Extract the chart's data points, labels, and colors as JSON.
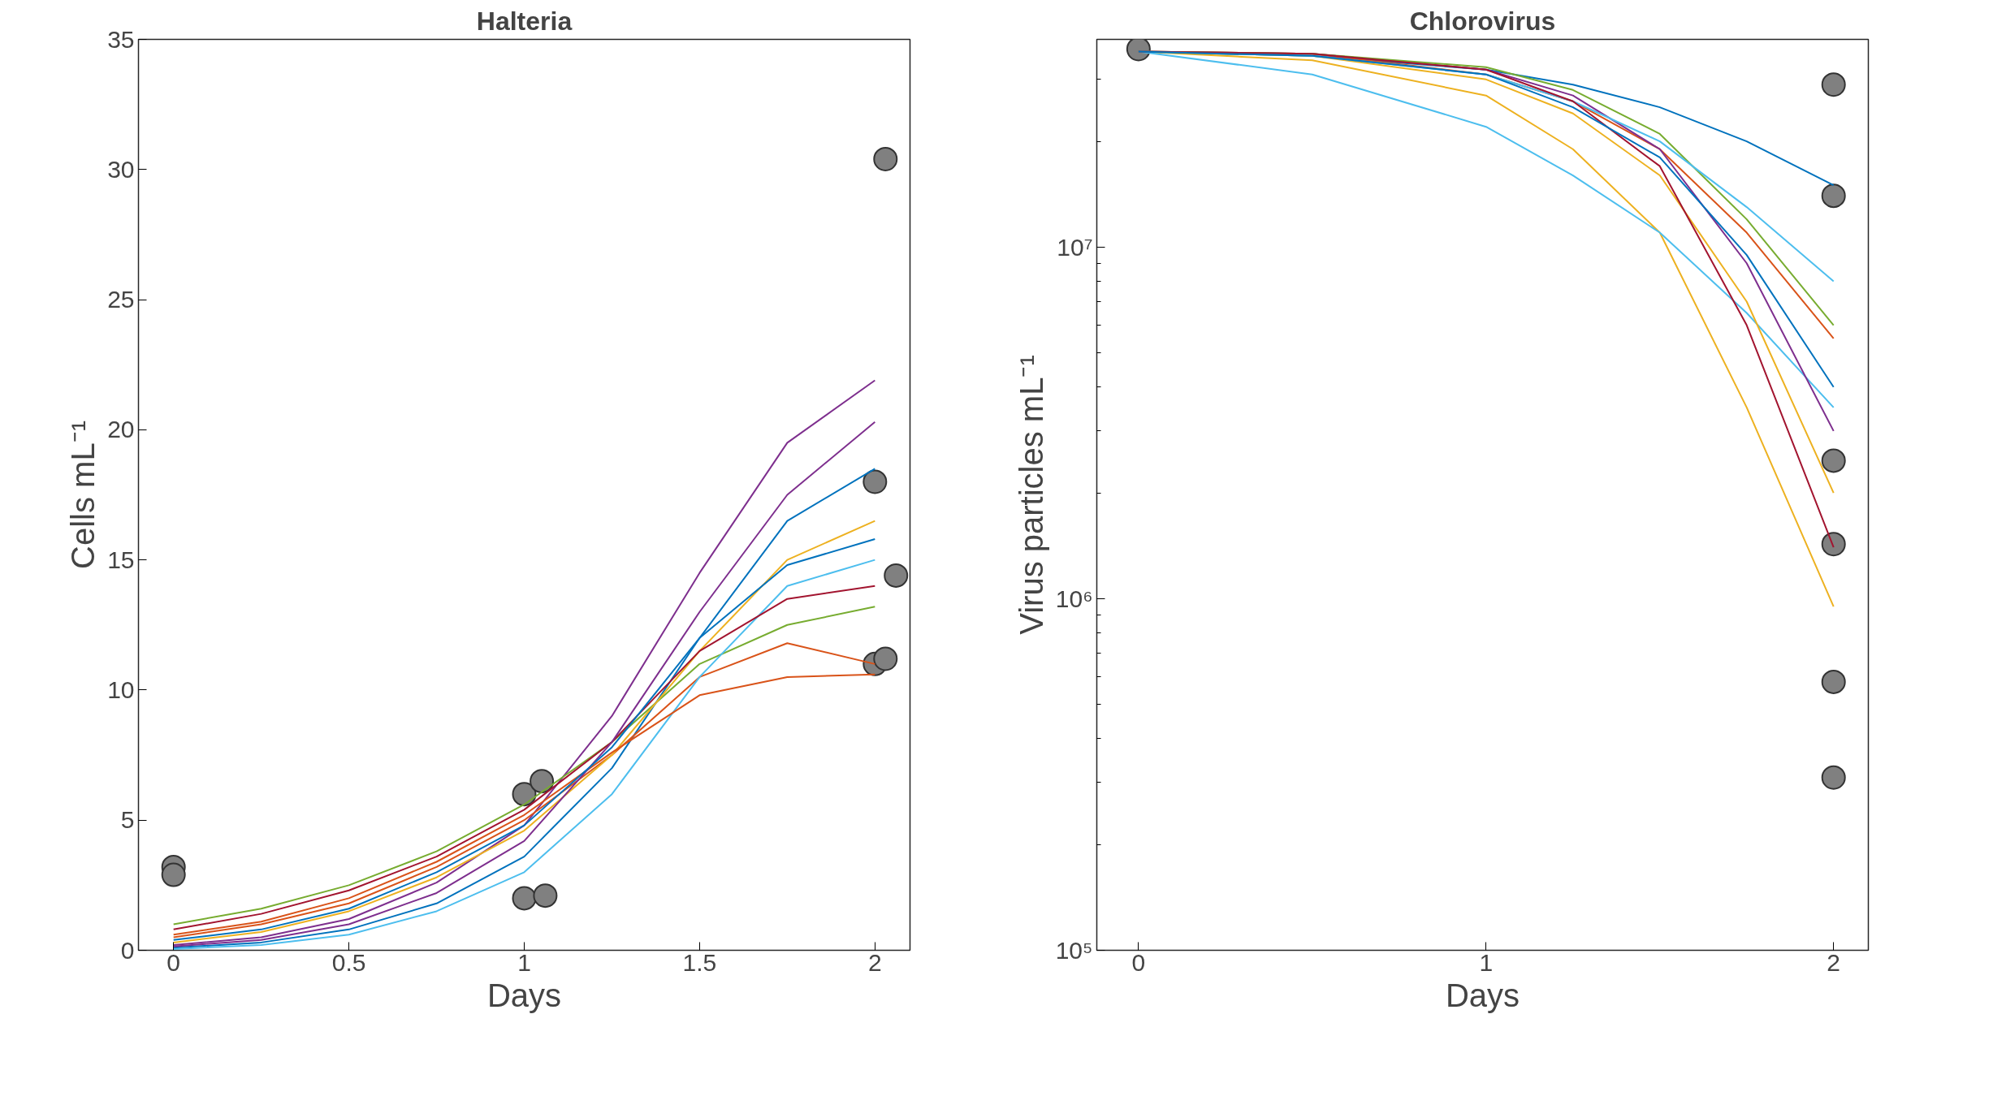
{
  "chart_data": [
    {
      "type": "line",
      "title": "Halteria",
      "xlabel": "Days",
      "ylabel": "Cells mL⁻¹",
      "xlim": [
        -0.1,
        2.1
      ],
      "xticks": [
        0,
        0.5,
        1,
        1.5,
        2
      ],
      "ylim": [
        0,
        35
      ],
      "yticks": [
        0,
        5,
        10,
        15,
        20,
        25,
        30,
        35
      ],
      "grid": false,
      "line_style": "solid",
      "marker": "none",
      "series": [
        {
          "color": "#7e2f8e",
          "x": [
            0,
            0.25,
            0.5,
            0.75,
            1,
            1.25,
            1.5,
            1.75,
            2
          ],
          "values": [
            0.2,
            0.5,
            1.2,
            2.6,
            4.8,
            9,
            14.5,
            19.5,
            21.9
          ]
        },
        {
          "color": "#77ac30",
          "x": [
            0,
            0.25,
            0.5,
            0.75,
            1,
            1.25,
            1.5,
            1.75,
            2
          ],
          "values": [
            1.0,
            1.6,
            2.5,
            3.8,
            5.6,
            8,
            11,
            12.5,
            13.2
          ]
        },
        {
          "color": "#0072bd",
          "x": [
            0,
            0.25,
            0.5,
            0.75,
            1,
            1.25,
            1.5,
            1.75,
            2
          ],
          "values": [
            0.1,
            0.3,
            0.8,
            1.8,
            3.6,
            7,
            12,
            16.5,
            18.5
          ]
        },
        {
          "color": "#d95319",
          "x": [
            0,
            0.25,
            0.5,
            0.75,
            1,
            1.25,
            1.5,
            1.75,
            2
          ],
          "values": [
            0.5,
            1.0,
            1.8,
            3.2,
            5.0,
            7.5,
            10.5,
            11.8,
            11
          ]
        },
        {
          "color": "#edb120",
          "x": [
            0,
            0.25,
            0.5,
            0.75,
            1,
            1.25,
            1.5,
            1.75,
            2
          ],
          "values": [
            0.3,
            0.7,
            1.5,
            2.8,
            4.6,
            7.5,
            11.5,
            15,
            16.5
          ]
        },
        {
          "color": "#4dbeee",
          "x": [
            0,
            0.25,
            0.5,
            0.75,
            1,
            1.25,
            1.5,
            1.75,
            2
          ],
          "values": [
            0.05,
            0.2,
            0.6,
            1.5,
            3.0,
            6,
            10.5,
            14,
            15
          ]
        },
        {
          "color": "#a2142f",
          "x": [
            0,
            0.25,
            0.5,
            0.75,
            1,
            1.25,
            1.5,
            1.75,
            2
          ],
          "values": [
            0.8,
            1.4,
            2.3,
            3.6,
            5.4,
            8,
            11.5,
            13.5,
            14
          ]
        },
        {
          "color": "#d95319",
          "x": [
            0,
            0.25,
            0.5,
            0.75,
            1,
            1.25,
            1.5,
            1.75,
            2
          ],
          "values": [
            0.6,
            1.1,
            2,
            3.4,
            5.2,
            7.6,
            9.8,
            10.5,
            10.6
          ]
        },
        {
          "color": "#7e2f8e",
          "x": [
            0,
            0.25,
            0.5,
            0.75,
            1,
            1.25,
            1.5,
            1.75,
            2
          ],
          "values": [
            0.15,
            0.4,
            1.0,
            2.2,
            4.2,
            8,
            13,
            17.5,
            20.3
          ]
        },
        {
          "color": "#0072bd",
          "x": [
            0,
            0.25,
            0.5,
            0.75,
            1,
            1.25,
            1.5,
            1.75,
            2
          ],
          "values": [
            0.4,
            0.8,
            1.6,
            3,
            4.8,
            7.8,
            12,
            14.8,
            15.8
          ]
        },
        {
          "type": "scatter",
          "marker": "circle",
          "color": "#808080",
          "x": [
            0,
            0,
            1,
            1.05,
            1,
            1.06,
            2,
            2.03,
            2.06,
            2,
            2.03
          ],
          "values": [
            3.2,
            2.9,
            6.0,
            6.5,
            2.0,
            2.1,
            18,
            30.4,
            14.4,
            11,
            11.2
          ]
        }
      ]
    },
    {
      "type": "line",
      "title": "Chlorovirus",
      "xlabel": "Days",
      "ylabel": "Virus particles mL⁻¹",
      "log": "y",
      "xlim": [
        -0.12,
        2.1
      ],
      "xticks": [
        0,
        1,
        2
      ],
      "ylim": [
        100000,
        39000000
      ],
      "yticks": [
        {
          "value": 100000,
          "label": "10⁵"
        },
        {
          "value": 1000000,
          "label": "10⁶"
        },
        {
          "value": 10000000,
          "label": "10⁷"
        }
      ],
      "grid": false,
      "line_style": "solid",
      "marker": "none",
      "series": [
        {
          "color": "#0072bd",
          "x": [
            0,
            0.5,
            1,
            1.25,
            1.5,
            1.75,
            2
          ],
          "values": [
            36000000,
            35000000,
            32000000,
            29000000,
            25000000,
            20000000,
            15000000
          ]
        },
        {
          "color": "#edb120",
          "x": [
            0,
            0.5,
            1,
            1.25,
            1.5,
            1.75,
            2
          ],
          "values": [
            36000000,
            34000000,
            27000000,
            19000000,
            11000000,
            3500000,
            950000
          ]
        },
        {
          "color": "#4dbeee",
          "x": [
            0,
            0.5,
            1,
            1.25,
            1.5,
            1.75,
            2
          ],
          "values": [
            36000000,
            31000000,
            22000000,
            16000000,
            11000000,
            6500000,
            3500000
          ]
        },
        {
          "color": "#d95319",
          "x": [
            0,
            0.5,
            1,
            1.25,
            1.5,
            1.75,
            2
          ],
          "values": [
            36000000,
            35500000,
            31000000,
            26000000,
            19000000,
            11000000,
            5500000
          ]
        },
        {
          "color": "#7e2f8e",
          "x": [
            0,
            0.5,
            1,
            1.25,
            1.5,
            1.75,
            2
          ],
          "values": [
            36000000,
            35500000,
            32000000,
            27000000,
            19000000,
            9000000,
            3000000
          ]
        },
        {
          "color": "#77ac30",
          "x": [
            0,
            0.5,
            1,
            1.25,
            1.5,
            1.75,
            2
          ],
          "values": [
            36000000,
            35500000,
            32500000,
            28000000,
            21000000,
            12000000,
            6000000
          ]
        },
        {
          "color": "#edb120",
          "x": [
            0,
            0.5,
            1,
            1.25,
            1.5,
            1.75,
            2
          ],
          "values": [
            36000000,
            35000000,
            30000000,
            24000000,
            16000000,
            7000000,
            2000000
          ]
        },
        {
          "color": "#4dbeee",
          "x": [
            0,
            0.5,
            1,
            1.25,
            1.5,
            1.75,
            2
          ],
          "values": [
            36000000,
            35000000,
            31000000,
            26000000,
            20000000,
            13000000,
            8000000
          ]
        },
        {
          "color": "#a2142f",
          "x": [
            0,
            0.5,
            1,
            1.25,
            1.5,
            1.75,
            2
          ],
          "values": [
            36000000,
            35500000,
            32000000,
            26000000,
            17000000,
            6000000,
            1400000
          ]
        },
        {
          "color": "#0072bd",
          "x": [
            0,
            0.5,
            1,
            1.25,
            1.5,
            1.75,
            2
          ],
          "values": [
            36000000,
            35000000,
            31000000,
            25000000,
            18000000,
            9500000,
            4000000
          ]
        },
        {
          "type": "scatter",
          "marker": "circle",
          "color": "#808080",
          "x": [
            0,
            2,
            2,
            2,
            2,
            2,
            2
          ],
          "values": [
            36600000,
            29000000,
            14000000,
            2470000,
            1430000,
            580000,
            310000
          ]
        }
      ]
    }
  ]
}
